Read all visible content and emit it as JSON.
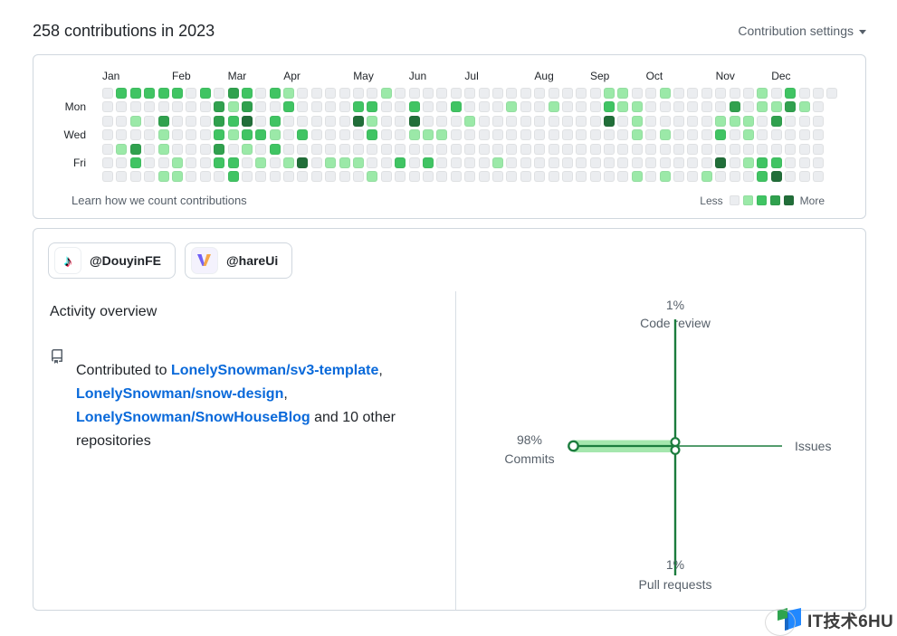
{
  "header": {
    "title": "258 contributions in 2023",
    "settings_label": "Contribution settings"
  },
  "colors": {
    "text_primary": "#1f2328",
    "text_muted": "#57606a",
    "card_border": "#d0d7de",
    "divider": "#d8dee4",
    "link_blue": "#0969da"
  },
  "calendar": {
    "weeks": 53,
    "last_week_visible_rows": 1,
    "palette": [
      "#ebedf0",
      "#9be9a8",
      "#40c463",
      "#30a14e",
      "#216e39"
    ],
    "months": [
      {
        "label": "Jan",
        "col": 0
      },
      {
        "label": "Feb",
        "col": 5
      },
      {
        "label": "Mar",
        "col": 9
      },
      {
        "label": "Apr",
        "col": 13
      },
      {
        "label": "May",
        "col": 18
      },
      {
        "label": "Jun",
        "col": 22
      },
      {
        "label": "Jul",
        "col": 26
      },
      {
        "label": "Aug",
        "col": 31
      },
      {
        "label": "Sep",
        "col": 35
      },
      {
        "label": "Oct",
        "col": 39
      },
      {
        "label": "Nov",
        "col": 44
      },
      {
        "label": "Dec",
        "col": 48
      }
    ],
    "day_labels": [
      {
        "label": "Mon",
        "row": 1
      },
      {
        "label": "Wed",
        "row": 3
      },
      {
        "label": "Fri",
        "row": 5
      }
    ],
    "levels": [
      [
        0,
        2,
        2,
        2,
        2,
        2,
        0,
        2,
        0,
        3,
        2,
        0,
        2,
        1,
        0,
        0,
        0,
        0,
        0,
        0,
        1,
        0,
        0,
        0,
        0,
        0,
        0,
        0,
        0,
        0,
        0,
        0,
        0,
        0,
        0,
        0,
        1,
        1,
        0,
        0,
        1,
        0,
        0,
        0,
        0,
        0,
        0,
        1,
        0,
        2,
        0,
        0,
        0
      ],
      [
        0,
        0,
        0,
        0,
        0,
        0,
        0,
        0,
        3,
        1,
        3,
        0,
        0,
        2,
        0,
        0,
        0,
        0,
        2,
        2,
        0,
        0,
        2,
        0,
        0,
        2,
        0,
        0,
        0,
        1,
        0,
        0,
        1,
        0,
        0,
        0,
        2,
        1,
        1,
        0,
        0,
        0,
        0,
        0,
        0,
        3,
        0,
        1,
        1,
        3,
        1,
        0,
        0
      ],
      [
        0,
        0,
        1,
        0,
        3,
        0,
        0,
        0,
        3,
        2,
        4,
        0,
        2,
        0,
        0,
        0,
        0,
        0,
        4,
        1,
        0,
        0,
        4,
        0,
        0,
        0,
        1,
        0,
        0,
        0,
        0,
        0,
        0,
        0,
        0,
        0,
        4,
        0,
        1,
        0,
        0,
        0,
        0,
        0,
        1,
        1,
        1,
        0,
        3,
        0,
        0,
        0,
        0
      ],
      [
        0,
        0,
        0,
        0,
        1,
        0,
        0,
        0,
        2,
        1,
        2,
        2,
        1,
        0,
        2,
        0,
        0,
        0,
        0,
        2,
        0,
        0,
        1,
        1,
        1,
        0,
        0,
        0,
        0,
        0,
        0,
        0,
        0,
        0,
        0,
        0,
        0,
        0,
        1,
        0,
        1,
        0,
        0,
        0,
        2,
        0,
        1,
        0,
        0,
        0,
        0,
        0,
        0
      ],
      [
        0,
        1,
        3,
        0,
        1,
        0,
        0,
        0,
        3,
        0,
        1,
        0,
        2,
        0,
        0,
        0,
        0,
        0,
        0,
        0,
        0,
        0,
        0,
        0,
        0,
        0,
        0,
        0,
        0,
        0,
        0,
        0,
        0,
        0,
        0,
        0,
        0,
        0,
        0,
        0,
        0,
        0,
        0,
        0,
        0,
        0,
        0,
        0,
        0,
        0,
        0,
        0,
        0
      ],
      [
        0,
        0,
        2,
        0,
        0,
        1,
        0,
        0,
        2,
        2,
        0,
        1,
        0,
        1,
        4,
        0,
        1,
        1,
        1,
        0,
        0,
        2,
        0,
        2,
        0,
        0,
        0,
        0,
        1,
        0,
        0,
        0,
        0,
        0,
        0,
        0,
        0,
        0,
        0,
        0,
        0,
        0,
        0,
        0,
        4,
        0,
        1,
        2,
        2,
        0,
        0,
        0,
        0
      ],
      [
        0,
        0,
        0,
        0,
        1,
        1,
        0,
        0,
        0,
        2,
        0,
        0,
        0,
        0,
        0,
        0,
        0,
        0,
        0,
        1,
        0,
        0,
        0,
        0,
        0,
        0,
        0,
        0,
        0,
        0,
        0,
        0,
        0,
        0,
        0,
        0,
        0,
        0,
        1,
        0,
        1,
        0,
        0,
        1,
        0,
        0,
        0,
        2,
        4,
        0,
        0,
        0,
        0
      ]
    ],
    "footer": {
      "learn_link": "Learn how we count contributions",
      "less": "Less",
      "more": "More"
    }
  },
  "orgs": [
    {
      "handle": "@DouyinFE",
      "icon": "tiktok-logo-icon"
    },
    {
      "handle": "@hareUi",
      "icon": "hareui-logo-icon"
    }
  ],
  "activity": {
    "heading": "Activity overview",
    "contributed_prefix": "Contributed to",
    "repos": [
      "LonelySnowman/sv3-template",
      "LonelySnowman/snow-design",
      "LonelySnowman/SnowHouseBlog"
    ],
    "suffix": "and 10 other repositories"
  },
  "activity_graph": {
    "axis_color": "#1b7c3d",
    "bar_color": "#a5e7ae",
    "top": {
      "pct": "1%",
      "label": "Code review"
    },
    "left": {
      "pct": "98%",
      "label": "Commits"
    },
    "right": {
      "label": "Issues"
    },
    "bottom": {
      "pct": "1%",
      "label": "Pull requests"
    }
  },
  "watermark": {
    "text": "IT技术6HU"
  }
}
